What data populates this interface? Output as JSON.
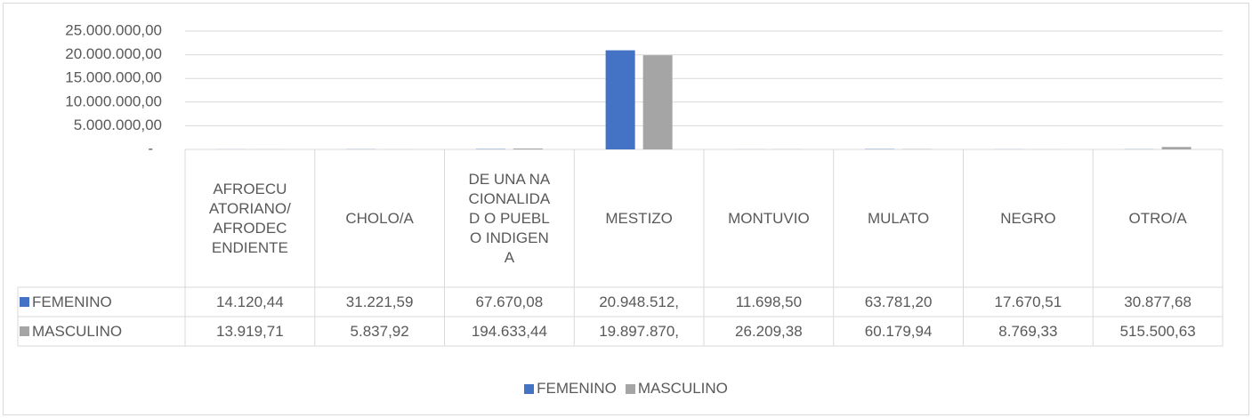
{
  "chart_data": {
    "type": "bar",
    "categories": [
      "AFROECUATORIANO/AFRODECENDIENTE",
      "CHOLO/A",
      "DE UNA NACIONALIDAD O PUEBLO INDIGENA",
      "MESTIZO",
      "MONTUVIO",
      "MULATO",
      "NEGRO",
      "OTRO/A"
    ],
    "series": [
      {
        "name": "FEMENINO",
        "color": "#4472c4",
        "values": [
          14120.44,
          31221.59,
          67670.08,
          20948512,
          11698.5,
          63781.2,
          17670.51,
          30877.68
        ],
        "value_labels": [
          "14.120,44",
          "31.221,59",
          "67.670,08",
          "20.948.512,",
          "11.698,50",
          "63.781,20",
          "17.670,51",
          "30.877,68"
        ]
      },
      {
        "name": "MASCULINO",
        "color": "#a5a5a5",
        "values": [
          13919.71,
          5837.92,
          194633.44,
          19897870,
          26209.38,
          60179.94,
          8769.33,
          515500.63
        ],
        "value_labels": [
          "13.919,71",
          "5.837,92",
          "194.633,44",
          "19.897.870,",
          "26.209,38",
          "60.179,94",
          "8.769,33",
          "515.500,63"
        ]
      }
    ],
    "ylim": [
      0,
      25000000
    ],
    "yticks": [
      {
        "value": 0,
        "label": "-"
      },
      {
        "value": 5000000,
        "label": "5.000.000,00"
      },
      {
        "value": 10000000,
        "label": "10.000.000,00"
      },
      {
        "value": 15000000,
        "label": "15.000.000,00"
      },
      {
        "value": 20000000,
        "label": "20.000.000,00"
      },
      {
        "value": 25000000,
        "label": "25.000.000,00"
      }
    ],
    "grid": true,
    "legend": "bottom"
  }
}
